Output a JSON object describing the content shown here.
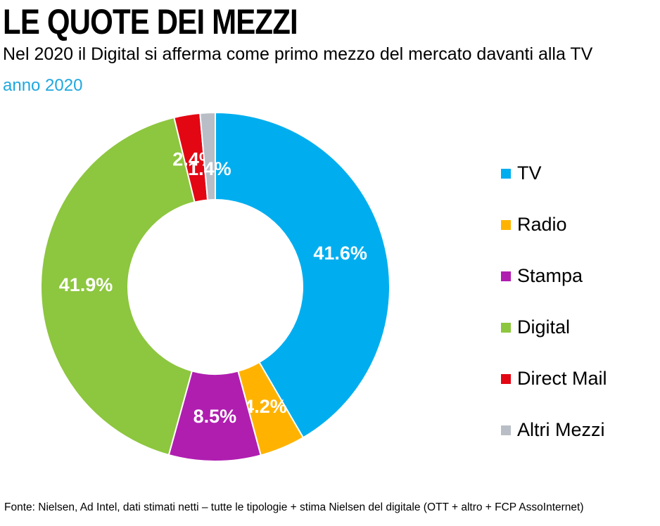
{
  "header": {
    "title": "LE QUOTE DEI MEZZI",
    "subtitle": "Nel 2020 il Digital si afferma come primo mezzo del mercato davanti alla TV",
    "period": "anno 2020"
  },
  "chart_data": {
    "type": "pie",
    "variant": "donut",
    "legend_position": "right",
    "slices": [
      {
        "label": "TV",
        "value": 41.6,
        "display": "41.6%",
        "color": "#00aeef"
      },
      {
        "label": "Radio",
        "value": 4.2,
        "display": "4.2%",
        "color": "#ffb300"
      },
      {
        "label": "Stampa",
        "value": 8.5,
        "display": "8.5%",
        "color": "#b01eb0"
      },
      {
        "label": "Digital",
        "value": 41.9,
        "display": "41.9%",
        "color": "#8dc63f"
      },
      {
        "label": "Direct Mail",
        "value": 2.4,
        "display": "2.4%",
        "color": "#e30613"
      },
      {
        "label": "Altri Mezzi",
        "value": 1.4,
        "display": "1.4%",
        "color": "#b9bec6"
      }
    ]
  },
  "footnote": "Fonte: Nielsen, Ad Intel, dati stimati netti – tutte le tipologie + stima Nielsen del digitale (OTT  + altro +  FCP AssoInternet)"
}
